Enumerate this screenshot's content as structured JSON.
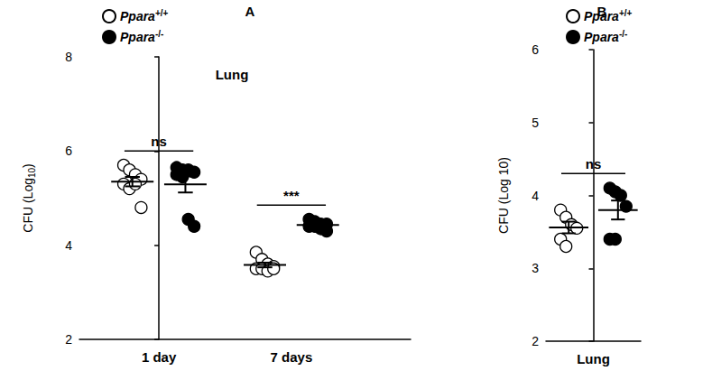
{
  "chart_data": [
    {
      "type": "scatter",
      "panel": "A",
      "title": "Lung",
      "categories": [
        "1 day",
        "7 days"
      ],
      "y_label": "CFU (Log10)",
      "ylim": [
        2,
        8
      ],
      "yticks": [
        2,
        4,
        6,
        8
      ],
      "series": [
        {
          "name": "Ppara+/+",
          "color": "#000000",
          "marker": "open_circle",
          "values": [
            [
              5.7,
              5.6,
              5.5,
              5.4,
              5.3,
              5.2,
              5.3,
              4.8
            ],
            [
              3.85,
              3.7,
              3.6,
              3.55,
              3.5,
              3.5,
              3.45,
              3.5
            ]
          ],
          "mean": [
            5.35,
            3.58
          ],
          "sem": [
            0.1,
            0.05
          ]
        },
        {
          "name": "Ppara-/-",
          "color": "#000000",
          "marker": "circle",
          "values": [
            [
              5.65,
              5.6,
              5.6,
              5.55,
              5.5,
              5.45,
              4.55,
              4.4
            ],
            [
              4.55,
              4.5,
              4.45,
              4.45,
              4.4,
              4.4,
              4.35,
              4.3
            ]
          ],
          "mean": [
            5.29,
            4.43
          ],
          "sem": [
            0.17,
            0.03
          ]
        }
      ],
      "annotations": [
        {
          "text": "ns",
          "category": "1 day"
        },
        {
          "text": "***",
          "category": "7 days"
        }
      ]
    },
    {
      "type": "scatter",
      "panel": "B",
      "categories": [
        "Lung"
      ],
      "y_label": "CFU (Log 10)",
      "ylim": [
        2,
        6
      ],
      "yticks": [
        2,
        3,
        4,
        5,
        6
      ],
      "series": [
        {
          "name": "Ppara+/+",
          "color": "#000000",
          "marker": "open_circle",
          "values": [
            [
              3.8,
              3.7,
              3.6,
              3.55,
              3.4,
              3.3
            ]
          ],
          "mean": [
            3.56
          ],
          "sem": [
            0.08
          ]
        },
        {
          "name": "Ppara-/-",
          "color": "#000000",
          "marker": "circle",
          "values": [
            [
              4.1,
              4.05,
              4.0,
              3.85,
              3.4,
              3.4
            ]
          ],
          "mean": [
            3.8
          ],
          "sem": [
            0.13
          ]
        }
      ],
      "annotations": [
        {
          "text": "ns",
          "category": "Lung"
        }
      ]
    }
  ]
}
